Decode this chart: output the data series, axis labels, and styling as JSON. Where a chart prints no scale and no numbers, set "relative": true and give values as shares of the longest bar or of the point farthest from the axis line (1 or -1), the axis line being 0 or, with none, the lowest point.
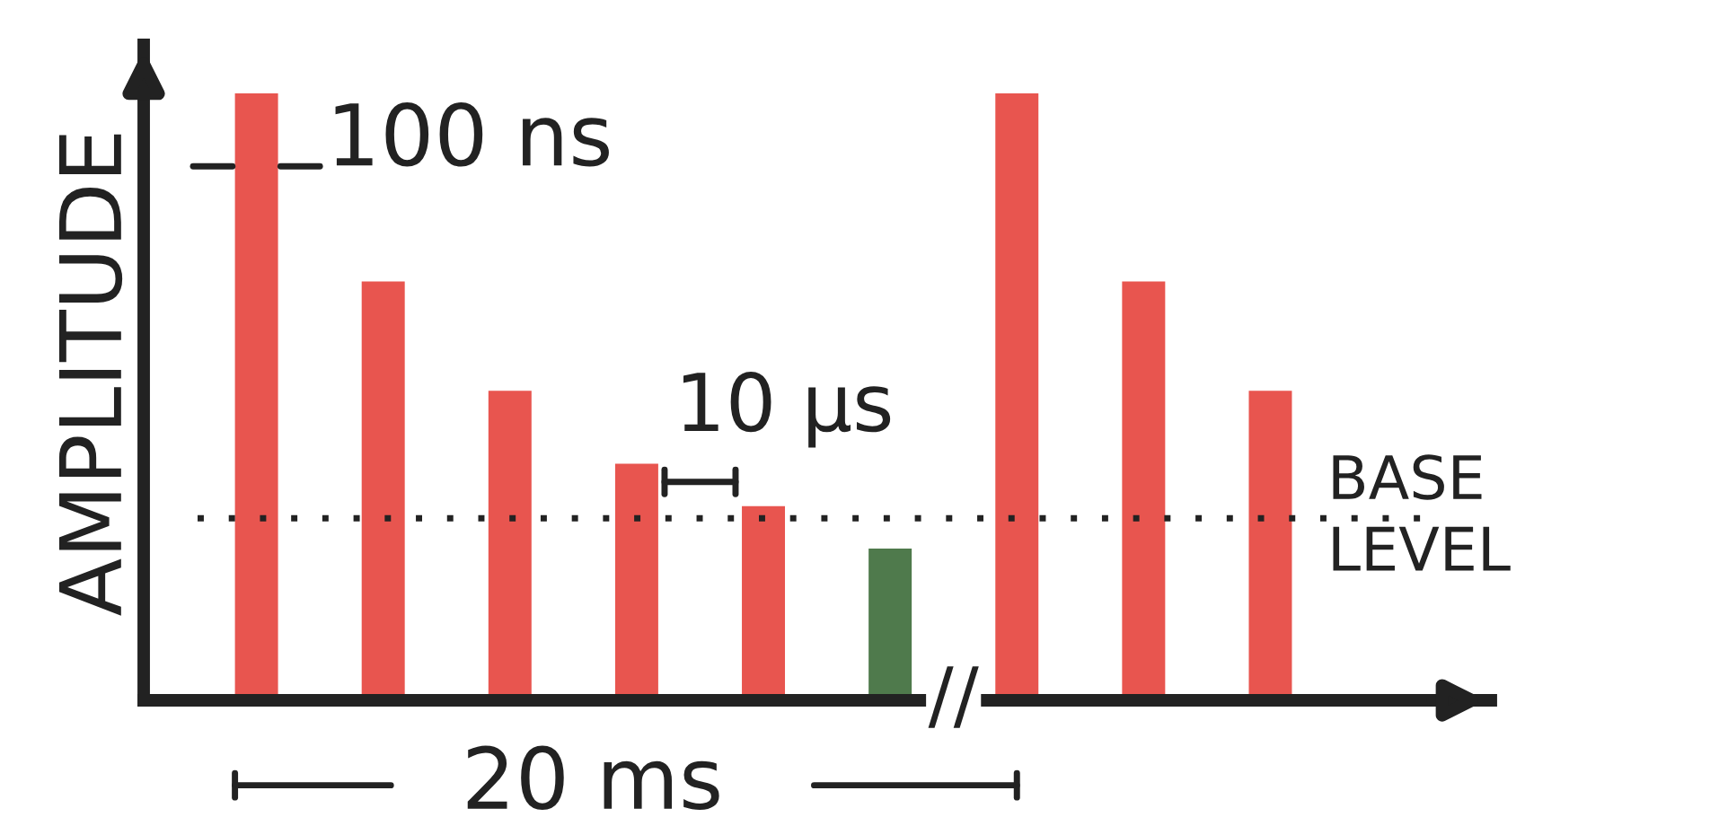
{
  "chart_data": {
    "type": "bar",
    "relative": true,
    "ylabel": "AMPLITUDE",
    "categories": [
      null,
      null,
      null,
      null,
      null,
      null,
      null,
      null,
      null
    ],
    "values": [
      1,
      0.69,
      0.51,
      0.39,
      0.32,
      0.25,
      1,
      0.69,
      0.51
    ],
    "colors": [
      "#e8554f",
      "#e8554f",
      "#e8554f",
      "#e8554f",
      "#e8554f",
      "#4f7a4c",
      "#e8554f",
      "#e8554f",
      "#e8554f"
    ],
    "ref_lines": [
      {
        "axis": "y",
        "value": 0.3,
        "label": "BASE\nLEVEL",
        "color": "#222222",
        "line_style": "dotted"
      }
    ],
    "annotations": [
      "100 ns",
      "10 µs",
      "20 ms",
      "//"
    ],
    "grid": false,
    "legend": false
  }
}
